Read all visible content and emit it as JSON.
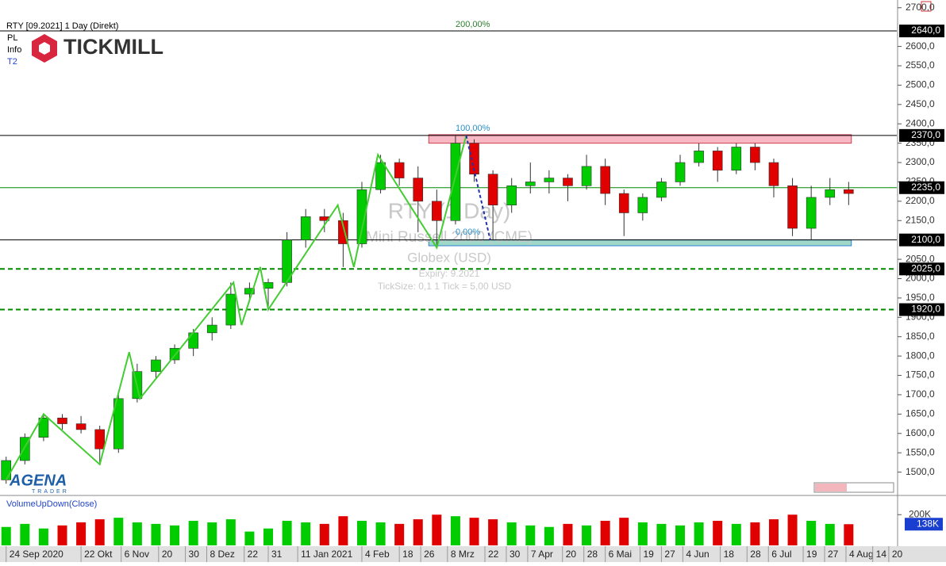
{
  "header": {
    "instrument": "RTY [09.2021] 1 Day (Direkt)",
    "menu": [
      "PL",
      "Info",
      "T2"
    ],
    "logo": "TICKMILL",
    "brand": "AGENA",
    "brand_sub": "TRADER"
  },
  "watermark": {
    "symbol": "RTY (1 Day)",
    "name": "Mini Russell 2000 (CME)",
    "session": "Globex   (USD)",
    "expiry": "Expiry: 9.2021",
    "tick": "TickSize: 0,1   1 Tick = 5,00 USD"
  },
  "fib_labels": [
    "200,00%",
    "100,00%",
    "0,00%"
  ],
  "chart_data": {
    "type": "candlestick",
    "up_color": "#00cc00",
    "down_color": "#e00000",
    "xlim": [
      "2020-09-22",
      "2021-08-23"
    ],
    "xticks": [
      {
        "value": "2020-09-24",
        "label": "24 Sep 2020"
      },
      {
        "value": "2020-10-22",
        "label": "22 Okt"
      },
      {
        "value": "2020-11-06",
        "label": "6 Nov"
      },
      {
        "value": "2020-11-20",
        "label": "20"
      },
      {
        "value": "2020-11-30",
        "label": "30"
      },
      {
        "value": "2020-12-08",
        "label": "8 Dez"
      },
      {
        "value": "2020-12-22",
        "label": "22"
      },
      {
        "value": "2020-12-31",
        "label": "31"
      },
      {
        "value": "2021-01-11",
        "label": "11 Jan 2021"
      },
      {
        "value": "2021-02-04",
        "label": "4 Feb"
      },
      {
        "value": "2021-02-18",
        "label": "18"
      },
      {
        "value": "2021-02-26",
        "label": "26"
      },
      {
        "value": "2021-03-08",
        "label": "8 Mrz"
      },
      {
        "value": "2021-03-22",
        "label": "22"
      },
      {
        "value": "2021-03-30",
        "label": "30"
      },
      {
        "value": "2021-04-07",
        "label": "7 Apr"
      },
      {
        "value": "2021-04-20",
        "label": "20"
      },
      {
        "value": "2021-04-28",
        "label": "28"
      },
      {
        "value": "2021-05-06",
        "label": "6 Mai"
      },
      {
        "value": "2021-05-19",
        "label": "19"
      },
      {
        "value": "2021-05-27",
        "label": "27"
      },
      {
        "value": "2021-06-04",
        "label": "4 Jun"
      },
      {
        "value": "2021-06-18",
        "label": "18"
      },
      {
        "value": "2021-06-28",
        "label": "28"
      },
      {
        "value": "2021-07-06",
        "label": "6 Jul"
      },
      {
        "value": "2021-07-19",
        "label": "19"
      },
      {
        "value": "2021-07-27",
        "label": "27"
      },
      {
        "value": "2021-08-04",
        "label": "4 Aug"
      },
      {
        "value": "2021-08-14",
        "label": "14"
      },
      {
        "value": "2021-08-20",
        "label": "20"
      }
    ],
    "ylim": [
      1450,
      2720
    ],
    "yticks": [
      {
        "value": 1500,
        "label": "1500,0"
      },
      {
        "value": 1550,
        "label": "1550,0"
      },
      {
        "value": 1600,
        "label": "1600,0"
      },
      {
        "value": 1650,
        "label": "1650,0"
      },
      {
        "value": 1700,
        "label": "1700,0"
      },
      {
        "value": 1750,
        "label": "1750,0"
      },
      {
        "value": 1800,
        "label": "1800,0"
      },
      {
        "value": 1850,
        "label": "1850,0"
      },
      {
        "value": 1900,
        "label": "1900,0"
      },
      {
        "value": 1950,
        "label": "1950,0"
      },
      {
        "value": 2000,
        "label": "2000,0"
      },
      {
        "value": 2050,
        "label": "2050,0"
      },
      {
        "value": 2150,
        "label": "2150,0"
      },
      {
        "value": 2200,
        "label": "2200,0"
      },
      {
        "value": 2250,
        "label": "2250,0"
      },
      {
        "value": 2300,
        "label": "2300,0"
      },
      {
        "value": 2350,
        "label": "2350,0"
      },
      {
        "value": 2400,
        "label": "2400,0"
      },
      {
        "value": 2450,
        "label": "2450,0"
      },
      {
        "value": 2500,
        "label": "2500,0"
      },
      {
        "value": 2550,
        "label": "2550,0"
      },
      {
        "value": 2600,
        "label": "2600,0"
      },
      {
        "value": 2700,
        "label": "2700,0"
      }
    ],
    "x": [
      "2020-09-24",
      "2020-10-01",
      "2020-10-08",
      "2020-10-15",
      "2020-10-22",
      "2020-10-29",
      "2020-11-05",
      "2020-11-12",
      "2020-11-19",
      "2020-11-26",
      "2020-12-03",
      "2020-12-10",
      "2020-12-17",
      "2020-12-24",
      "2020-12-31",
      "2021-01-07",
      "2021-01-14",
      "2021-01-21",
      "2021-01-28",
      "2021-02-04",
      "2021-02-11",
      "2021-02-18",
      "2021-02-25",
      "2021-03-04",
      "2021-03-11",
      "2021-03-18",
      "2021-03-25",
      "2021-04-01",
      "2021-04-08",
      "2021-04-15",
      "2021-04-22",
      "2021-04-29",
      "2021-05-06",
      "2021-05-13",
      "2021-05-20",
      "2021-05-27",
      "2021-06-03",
      "2021-06-10",
      "2021-06-17",
      "2021-06-24",
      "2021-07-01",
      "2021-07-08",
      "2021-07-15",
      "2021-07-22",
      "2021-07-29",
      "2021-08-05"
    ],
    "ohlc": [
      [
        1480,
        1540,
        1470,
        1530
      ],
      [
        1530,
        1600,
        1520,
        1590
      ],
      [
        1590,
        1650,
        1580,
        1640
      ],
      [
        1640,
        1650,
        1610,
        1625
      ],
      [
        1625,
        1645,
        1600,
        1610
      ],
      [
        1610,
        1620,
        1520,
        1560
      ],
      [
        1560,
        1700,
        1550,
        1690
      ],
      [
        1690,
        1780,
        1680,
        1760
      ],
      [
        1760,
        1800,
        1740,
        1790
      ],
      [
        1790,
        1830,
        1780,
        1820
      ],
      [
        1820,
        1870,
        1800,
        1860
      ],
      [
        1860,
        1900,
        1840,
        1880
      ],
      [
        1880,
        1990,
        1870,
        1960
      ],
      [
        1960,
        1990,
        1940,
        1975
      ],
      [
        1975,
        2000,
        1920,
        1990
      ],
      [
        1990,
        2120,
        1980,
        2100
      ],
      [
        2100,
        2180,
        2080,
        2160
      ],
      [
        2160,
        2180,
        2120,
        2150
      ],
      [
        2150,
        2170,
        2030,
        2090
      ],
      [
        2090,
        2250,
        2080,
        2230
      ],
      [
        2230,
        2320,
        2220,
        2300
      ],
      [
        2300,
        2310,
        2240,
        2260
      ],
      [
        2260,
        2290,
        2120,
        2200
      ],
      [
        2200,
        2230,
        2080,
        2150
      ],
      [
        2150,
        2370,
        2140,
        2350
      ],
      [
        2350,
        2360,
        2250,
        2270
      ],
      [
        2270,
        2280,
        2100,
        2190
      ],
      [
        2190,
        2260,
        2170,
        2240
      ],
      [
        2240,
        2300,
        2220,
        2250
      ],
      [
        2250,
        2280,
        2220,
        2260
      ],
      [
        2260,
        2270,
        2200,
        2240
      ],
      [
        2240,
        2320,
        2230,
        2290
      ],
      [
        2290,
        2310,
        2190,
        2220
      ],
      [
        2220,
        2230,
        2110,
        2170
      ],
      [
        2170,
        2220,
        2150,
        2210
      ],
      [
        2210,
        2260,
        2200,
        2250
      ],
      [
        2250,
        2320,
        2240,
        2300
      ],
      [
        2300,
        2350,
        2290,
        2330
      ],
      [
        2330,
        2340,
        2250,
        2280
      ],
      [
        2280,
        2350,
        2270,
        2340
      ],
      [
        2340,
        2350,
        2280,
        2300
      ],
      [
        2300,
        2310,
        2210,
        2240
      ],
      [
        2240,
        2260,
        2110,
        2130
      ],
      [
        2130,
        2240,
        2100,
        2210
      ],
      [
        2210,
        2260,
        2190,
        2230
      ],
      [
        2230,
        2250,
        2190,
        2220
      ]
    ],
    "volume": [
      120000,
      140000,
      110000,
      130000,
      150000,
      170000,
      180000,
      150000,
      140000,
      130000,
      160000,
      150000,
      170000,
      90000,
      110000,
      160000,
      150000,
      140000,
      190000,
      160000,
      150000,
      140000,
      170000,
      200000,
      190000,
      180000,
      170000,
      150000,
      130000,
      120000,
      140000,
      130000,
      160000,
      180000,
      150000,
      140000,
      130000,
      150000,
      160000,
      140000,
      150000,
      170000,
      200000,
      160000,
      140000,
      138000
    ],
    "vlim": [
      0,
      320000
    ],
    "vticks": [
      {
        "value": 200000,
        "label": "200K"
      }
    ],
    "vlast": {
      "value": 138000,
      "label": "138K"
    },
    "volume_title": "VolumeUpDown(Close)",
    "levels": [
      {
        "value": 2640,
        "label": "2640,0",
        "color": "#000000",
        "dash": false
      },
      {
        "value": 2370,
        "label": "2370,0",
        "color": "#000000",
        "dash": false
      },
      {
        "value": 2235,
        "label": "2235,0",
        "color": "#008800",
        "dash": false
      },
      {
        "value": 2100,
        "label": "2100,0",
        "color": "#000000",
        "dash": false
      },
      {
        "value": 2025,
        "label": "2025,0",
        "color": "#008800",
        "dash": true
      },
      {
        "value": 1920,
        "label": "1920,0",
        "color": "#008800",
        "dash": true
      }
    ],
    "zones": [
      {
        "from": "2021-03-01",
        "to": "2021-08-06",
        "low": 2350,
        "high": 2372,
        "color": "#f7b8c4"
      },
      {
        "from": "2021-03-01",
        "to": "2021-08-06",
        "low": 2085,
        "high": 2100,
        "color": "#9fd8c8"
      }
    ],
    "zigzag": {
      "color": "#44cc33",
      "x": [
        "2020-09-24",
        "2020-10-08",
        "2020-10-29",
        "2020-11-09",
        "2020-11-13",
        "2020-12-18",
        "2020-12-21",
        "2020-12-28",
        "2020-12-31",
        "2021-01-26",
        "2021-02-01",
        "2021-02-10",
        "2021-03-04",
        "2021-03-15"
      ],
      "values": [
        1480,
        1650,
        1520,
        1810,
        1690,
        1990,
        1880,
        2030,
        1920,
        2190,
        2030,
        2320,
        2080,
        2370
      ]
    },
    "projection": {
      "color": "#2233aa",
      "x": [
        "2021-03-15",
        "2021-03-24"
      ],
      "values": [
        2370,
        2100
      ]
    }
  }
}
